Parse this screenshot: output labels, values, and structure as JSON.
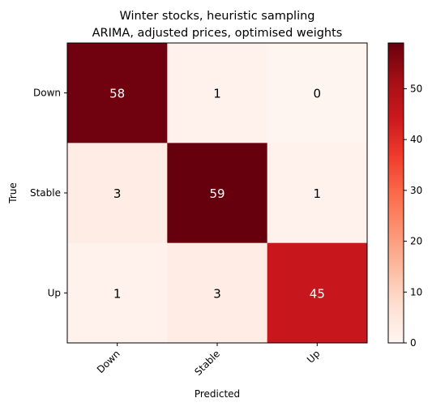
{
  "chart_data": {
    "type": "heatmap",
    "title_lines": [
      "Winter stocks, heuristic sampling",
      "ARIMA, adjusted prices, optimised weights"
    ],
    "xlabel": "Predicted",
    "ylabel": "True",
    "x_categories": [
      "Down",
      "Stable",
      "Up"
    ],
    "y_categories": [
      "Down",
      "Stable",
      "Up"
    ],
    "values": [
      [
        58,
        1,
        0
      ],
      [
        3,
        59,
        1
      ],
      [
        1,
        3,
        45
      ]
    ],
    "colormap": "Reds",
    "vmin": 0,
    "vmax": 59,
    "colorbar_ticks": [
      0,
      10,
      20,
      30,
      40,
      50
    ],
    "grid": false,
    "text_color_dark": "#000000",
    "text_color_light": "#ffffff"
  }
}
